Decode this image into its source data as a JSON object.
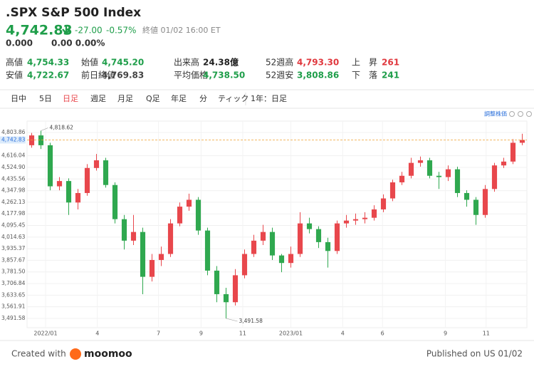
{
  "header": {
    "title": ".SPX S&P 500 Index",
    "price": "4,742.83",
    "change": "-27.00",
    "change_pct": "-0.57%",
    "status": "終値 01/02 16:00 ET",
    "ext_price": "0.000",
    "ext_change": "0.00 0.00%"
  },
  "stats": [
    {
      "label": "高値",
      "value": "4,754.33",
      "color": "#1f9e4a"
    },
    {
      "label": "安値",
      "value": "4,722.67",
      "color": "#1f9e4a"
    },
    {
      "label": "始値",
      "value": "4,745.20",
      "color": "#1f9e4a"
    },
    {
      "label": "前日終値",
      "value": "4,769.83",
      "color": "#444444"
    },
    {
      "label": "出来高",
      "value": "24.38億",
      "color": "#222222"
    },
    {
      "label": "平均価格",
      "value": "4,738.50",
      "color": "#1f9e4a"
    },
    {
      "label": "52週高",
      "value": "4,793.30",
      "color": "#e0383e"
    },
    {
      "label": "52週安",
      "value": "3,808.86",
      "color": "#1f9e4a"
    },
    {
      "label": "上　昇",
      "value": "261",
      "color": "#e0383e"
    },
    {
      "label": "下　落",
      "value": "241",
      "color": "#1f9e4a"
    }
  ],
  "tabs": [
    "日中",
    "5日",
    "日足",
    "週足",
    "月足",
    "Q足",
    "年足",
    "分",
    "ティック",
    "1年：日足"
  ],
  "active_tab": 2,
  "adjust_link": "調整株価",
  "chart_data": {
    "type": "candlestick",
    "log_scale": true,
    "grid": true,
    "up_color": "#e8474c",
    "down_color": "#2fa84f",
    "x": [
      0,
      1,
      2,
      3,
      4,
      5,
      6,
      7,
      8,
      9,
      10,
      11,
      12,
      13,
      14,
      15,
      16,
      17,
      18,
      19,
      20,
      21,
      22,
      23,
      24,
      25,
      26,
      27,
      28,
      29,
      30,
      31,
      32,
      33,
      34,
      35,
      36,
      37,
      38,
      39,
      40,
      41,
      42,
      43,
      44,
      45,
      46,
      47,
      48,
      49,
      50,
      51,
      52,
      53
    ],
    "open": [
      4700,
      4780,
      4700,
      4380,
      4420,
      4260,
      4330,
      4520,
      4580,
      4390,
      4140,
      3990,
      4050,
      3750,
      3860,
      3900,
      4110,
      4230,
      4280,
      4060,
      3790,
      3640,
      3590,
      3760,
      3900,
      3990,
      4050,
      3890,
      3840,
      3900,
      4110,
      4070,
      3980,
      3920,
      4110,
      4130,
      4140,
      4150,
      4210,
      4290,
      4410,
      4460,
      4560,
      4580,
      4460,
      4450,
      4510,
      4330,
      4280,
      4170,
      4360,
      4540,
      4570,
      4720
    ],
    "high": [
      4800,
      4818.62,
      4720,
      4450,
      4440,
      4360,
      4550,
      4630,
      4600,
      4410,
      4170,
      4170,
      4080,
      3900,
      3950,
      4140,
      4260,
      4325,
      4300,
      4080,
      3820,
      3680,
      3800,
      3930,
      4030,
      4100,
      4080,
      3900,
      3950,
      4190,
      4150,
      4090,
      4010,
      4130,
      4170,
      4180,
      4190,
      4240,
      4320,
      4430,
      4490,
      4600,
      4610,
      4600,
      4490,
      4540,
      4530,
      4350,
      4300,
      4390,
      4560,
      4600,
      4750,
      4793.3
    ],
    "low": [
      4680,
      4670,
      4350,
      4350,
      4170,
      4210,
      4310,
      4500,
      4370,
      4110,
      3930,
      3960,
      3640,
      3720,
      3820,
      3880,
      4090,
      4200,
      4030,
      3760,
      3590,
      3491.58,
      3570,
      3740,
      3880,
      3960,
      3860,
      3780,
      3810,
      3880,
      4040,
      3940,
      3810,
      3900,
      4080,
      4100,
      4110,
      4130,
      4190,
      4270,
      4390,
      4440,
      4530,
      4440,
      4360,
      4420,
      4300,
      4230,
      4100,
      4150,
      4340,
      4520,
      4550,
      4700
    ],
    "close": [
      4780,
      4700,
      4380,
      4420,
      4260,
      4330,
      4520,
      4580,
      4390,
      4140,
      3990,
      4050,
      3750,
      3860,
      3900,
      4110,
      4230,
      4280,
      4060,
      3790,
      3640,
      3590,
      3760,
      3900,
      3990,
      4050,
      3890,
      3840,
      3900,
      4110,
      4070,
      3980,
      3920,
      4110,
      4130,
      4140,
      4150,
      4210,
      4290,
      4410,
      4460,
      4560,
      4580,
      4460,
      4450,
      4510,
      4330,
      4280,
      4170,
      4360,
      4540,
      4570,
      4720,
      4742.83
    ],
    "max_label": "4,818.62",
    "min_label": "3,491.58",
    "last_label": "4,742.83",
    "xlim": [
      -0.5,
      53.5
    ],
    "xticks": [
      {
        "value": 1.5,
        "label": "2022/01"
      },
      {
        "value": 7.1,
        "label": "4"
      },
      {
        "value": 13.7,
        "label": "7"
      },
      {
        "value": 18.3,
        "label": "9"
      },
      {
        "value": 22.8,
        "label": "11"
      },
      {
        "value": 28,
        "label": "2023/01"
      },
      {
        "value": 33.6,
        "label": "4"
      },
      {
        "value": 37.9,
        "label": "6"
      },
      {
        "value": 44.7,
        "label": "9"
      },
      {
        "value": 49.1,
        "label": "11"
      }
    ],
    "ylim": [
      3436.5,
      4898.8
    ],
    "yticks": [
      {
        "value": 4803.86,
        "label": "4,803.86"
      },
      {
        "value": 4616.04,
        "label": "4,616.04"
      },
      {
        "value": 4524.9,
        "label": "4,524.90"
      },
      {
        "value": 4435.56,
        "label": "4,435.56"
      },
      {
        "value": 4347.98,
        "label": "4,347.98"
      },
      {
        "value": 4262.13,
        "label": "4,262.13"
      },
      {
        "value": 4177.98,
        "label": "4,177.98"
      },
      {
        "value": 4095.45,
        "label": "4,095.45"
      },
      {
        "value": 4014.63,
        "label": "4,014.63"
      },
      {
        "value": 3935.37,
        "label": "3,935.37"
      },
      {
        "value": 3857.67,
        "label": "3,857.67"
      },
      {
        "value": 3781.5,
        "label": "3,781.50"
      },
      {
        "value": 3706.84,
        "label": "3,706.84"
      },
      {
        "value": 3633.65,
        "label": "3,633.65"
      },
      {
        "value": 3561.91,
        "label": "3,561.91"
      },
      {
        "value": 3491.58,
        "label": "3,491.58"
      }
    ]
  },
  "footer": {
    "created": "Created with",
    "brand": "moomoo",
    "published": "Published on US 01/02"
  }
}
